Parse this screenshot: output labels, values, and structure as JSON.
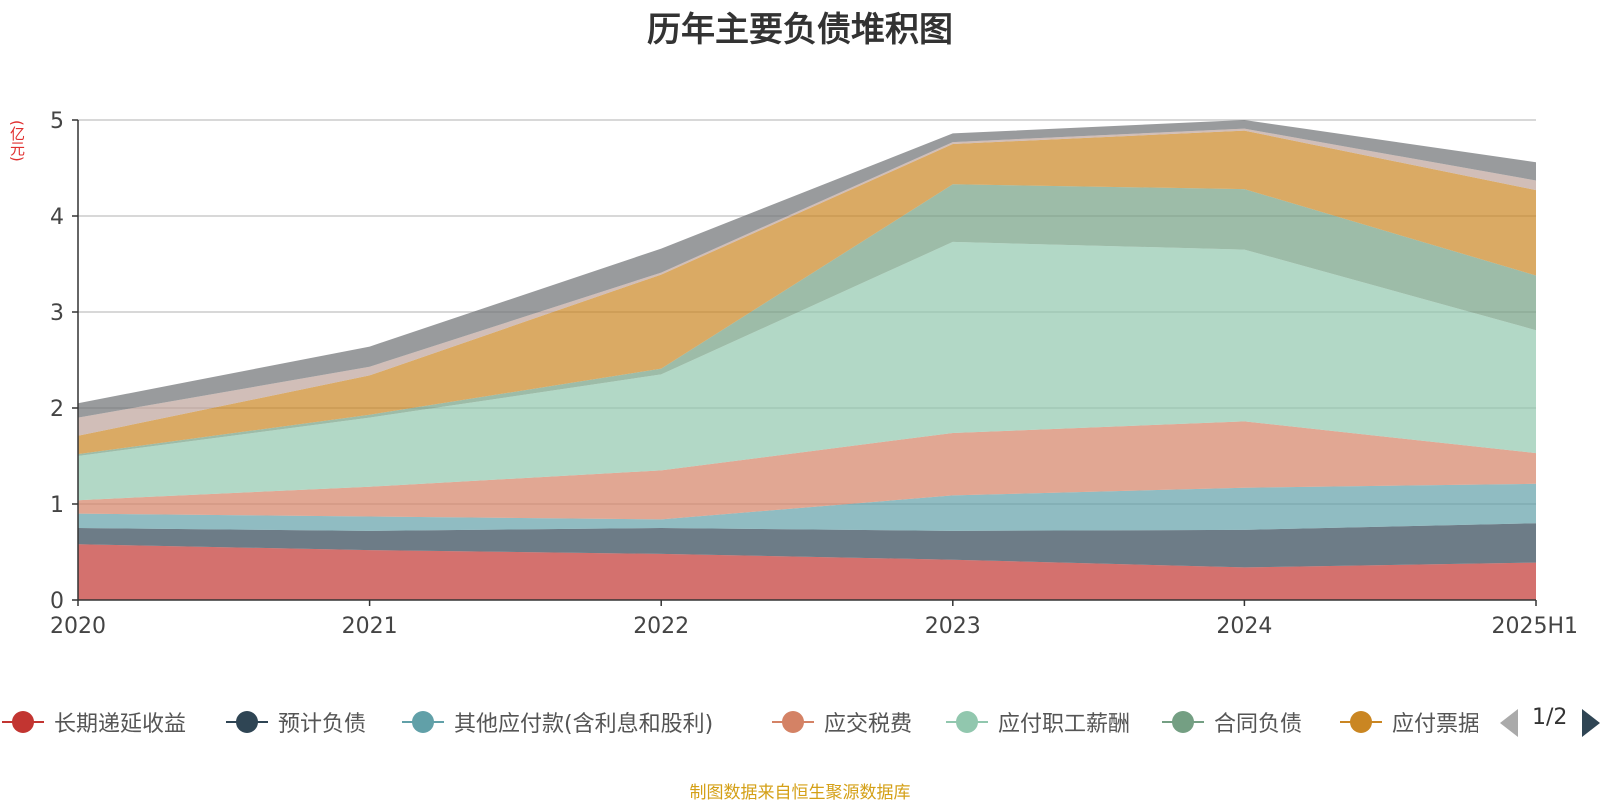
{
  "chart_data": {
    "type": "area",
    "stacked": true,
    "title": "历年主要负债堆积图",
    "y_unit": "(亿元)",
    "x": [
      "2020",
      "2021",
      "2022",
      "2023",
      "2024",
      "2025H1"
    ],
    "ylim": [
      0,
      5
    ],
    "yticks": [
      0,
      1,
      2,
      3,
      4,
      5
    ],
    "grid": true,
    "legend_position": "bottom",
    "series": [
      {
        "name": "长期递延收益",
        "color": "#c23531",
        "values": [
          0.58,
          0.52,
          0.48,
          0.42,
          0.34,
          0.39
        ]
      },
      {
        "name": "预计负债",
        "color": "#2f4554",
        "values": [
          0.17,
          0.2,
          0.27,
          0.3,
          0.39,
          0.41
        ]
      },
      {
        "name": "其他应付款(含利息和股利)",
        "color": "#61a0a8",
        "values": [
          0.15,
          0.15,
          0.09,
          0.37,
          0.44,
          0.41
        ]
      },
      {
        "name": "应交税费",
        "color": "#d48265",
        "values": [
          0.14,
          0.31,
          0.51,
          0.65,
          0.69,
          0.32
        ]
      },
      {
        "name": "应付职工薪酬",
        "color": "#91c7ae",
        "values": [
          0.46,
          0.72,
          1.0,
          1.99,
          1.79,
          1.28
        ]
      },
      {
        "name": "合同负债",
        "color": "#749f83",
        "values": [
          0.02,
          0.03,
          0.06,
          0.6,
          0.63,
          0.57
        ]
      },
      {
        "name": "应付票据",
        "color": "#ca8622",
        "values": [
          0.19,
          0.41,
          0.98,
          0.42,
          0.61,
          0.89
        ]
      },
      {
        "name": "",
        "color": "#bda29a",
        "values": [
          0.19,
          0.09,
          0.02,
          0.02,
          0.02,
          0.1
        ]
      },
      {
        "name": "",
        "color": "#6e7074",
        "values": [
          0.15,
          0.21,
          0.25,
          0.09,
          0.09,
          0.19
        ]
      }
    ]
  },
  "legend": {
    "page_indicator": "1/2"
  },
  "source_note": "制图数据来自恒生聚源数据库"
}
